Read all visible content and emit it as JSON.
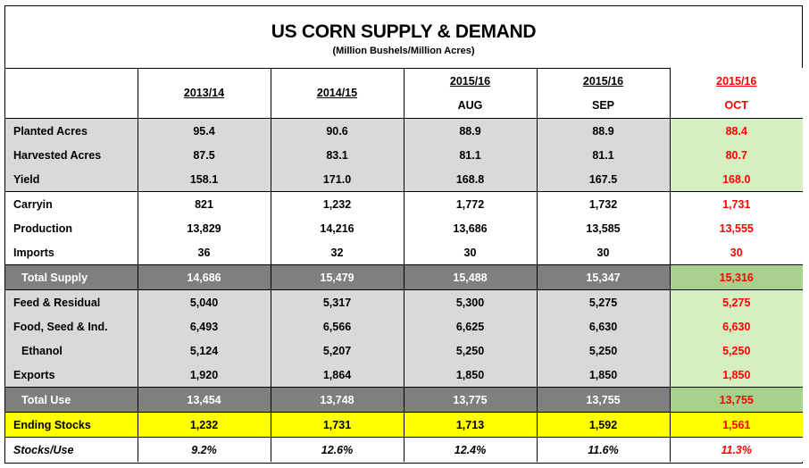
{
  "title": "US CORN SUPPLY & DEMAND",
  "subtitle": "(Million Bushels/Million Acres)",
  "columns": [
    {
      "year": "2013/14",
      "month": ""
    },
    {
      "year": "2014/15",
      "month": ""
    },
    {
      "year": "2015/16",
      "month": "AUG"
    },
    {
      "year": "2015/16",
      "month": "SEP"
    },
    {
      "year": "2015/16",
      "month": "OCT"
    }
  ],
  "rows": [
    {
      "label": "Planted Acres",
      "values": [
        "95.4",
        "90.6",
        "88.9",
        "88.9",
        "88.4"
      ]
    },
    {
      "label": "Harvested Acres",
      "values": [
        "87.5",
        "83.1",
        "81.1",
        "81.1",
        "80.7"
      ]
    },
    {
      "label": "Yield",
      "values": [
        "158.1",
        "171.0",
        "168.8",
        "167.5",
        "168.0"
      ]
    },
    {
      "label": "Carryin",
      "values": [
        "821",
        "1,232",
        "1,772",
        "1,732",
        "1,731"
      ]
    },
    {
      "label": "Production",
      "values": [
        "13,829",
        "14,216",
        "13,686",
        "13,585",
        "13,555"
      ]
    },
    {
      "label": "Imports",
      "values": [
        "36",
        "32",
        "30",
        "30",
        "30"
      ]
    },
    {
      "label": "Total Supply",
      "values": [
        "14,686",
        "15,479",
        "15,488",
        "15,347",
        "15,316"
      ]
    },
    {
      "label": "Feed & Residual",
      "values": [
        "5,040",
        "5,317",
        "5,300",
        "5,275",
        "5,275"
      ]
    },
    {
      "label": "Food, Seed & Ind.",
      "values": [
        "6,493",
        "6,566",
        "6,625",
        "6,630",
        "6,630"
      ]
    },
    {
      "label": "Ethanol",
      "values": [
        "5,124",
        "5,207",
        "5,250",
        "5,250",
        "5,250"
      ]
    },
    {
      "label": "Exports",
      "values": [
        "1,920",
        "1,864",
        "1,850",
        "1,850",
        "1,850"
      ]
    },
    {
      "label": "Total Use",
      "values": [
        "13,454",
        "13,748",
        "13,775",
        "13,755",
        "13,755"
      ]
    },
    {
      "label": "Ending Stocks",
      "values": [
        "1,232",
        "1,731",
        "1,713",
        "1,592",
        "1,561"
      ]
    },
    {
      "label": "Stocks/Use",
      "values": [
        "9.2%",
        "12.6%",
        "12.4%",
        "11.6%",
        "11.3%"
      ]
    }
  ],
  "colors": {
    "header_gray": "#d9d9d9",
    "total_dark_gray": "#7f7f7f",
    "highlight_yellow": "#ffff00",
    "latest_green": "#d6efc0",
    "latest_text_red": "#ff0000"
  }
}
